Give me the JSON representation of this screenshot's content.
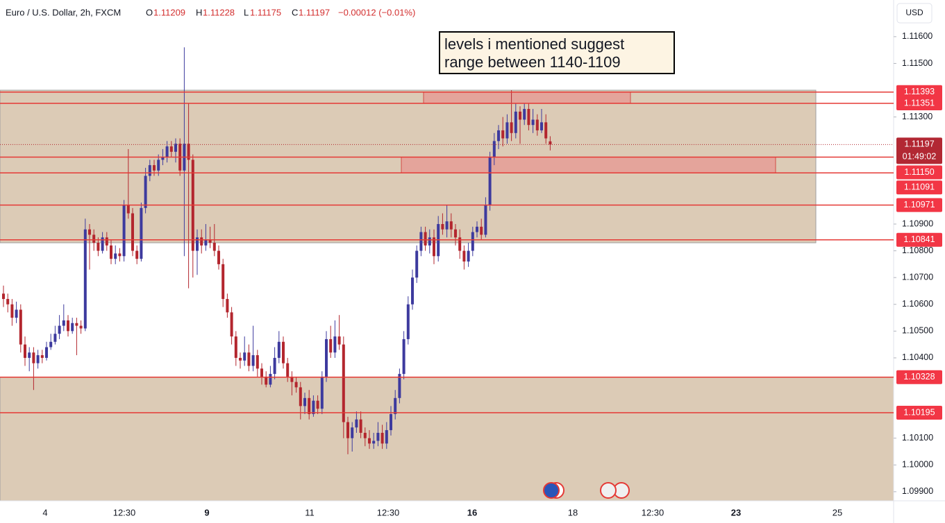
{
  "chart_data": {
    "type": "candlestick",
    "symbol": "Euro / U.S. Dollar, 2h, FXCM",
    "ohlc_labels": [
      "O",
      "H",
      "L",
      "C"
    ],
    "change": "−0.00012 (−0.01%)",
    "currency": "USD",
    "countdown": "01:49:02",
    "annotation": [
      "levels i mentioned suggest",
      "range between 1140-1109"
    ],
    "up_color": "#3d3a9e",
    "down_color": "#b3262e",
    "level_color": "#e53935",
    "ylim": [
      1.09866,
      1.11737
    ],
    "yticks": [
      {
        "value": 1.116,
        "label": "1.11600"
      },
      {
        "value": 1.115,
        "label": "1.11500"
      },
      {
        "value": 1.113,
        "label": "1.11300"
      },
      {
        "value": 1.109,
        "label": "1.10900"
      },
      {
        "value": 1.108,
        "label": "1.10800"
      },
      {
        "value": 1.107,
        "label": "1.10700"
      },
      {
        "value": 1.106,
        "label": "1.10600"
      },
      {
        "value": 1.105,
        "label": "1.10500"
      },
      {
        "value": 1.104,
        "label": "1.10400"
      },
      {
        "value": 1.101,
        "label": "1.10100"
      },
      {
        "value": 1.1,
        "label": "1.10000"
      },
      {
        "value": 1.099,
        "label": "1.09900"
      }
    ],
    "grid": false,
    "x_labels": [
      "4",
      "12:30",
      "9",
      "11",
      "12:30",
      "16",
      "18",
      "12:30",
      "23",
      "25"
    ],
    "levels": [
      {
        "value": 1.11393,
        "label": "1.11393"
      },
      {
        "value": 1.11351,
        "label": "1.11351"
      },
      {
        "value": 1.1115,
        "label": "1.11150"
      },
      {
        "value": 1.11091,
        "label": "1.11091"
      },
      {
        "value": 1.10971,
        "label": "1.10971"
      },
      {
        "value": 1.10841,
        "label": "1.10841"
      },
      {
        "value": 1.10328,
        "label": "1.10328"
      },
      {
        "value": 1.10195,
        "label": "1.10195"
      }
    ],
    "zones": [
      {
        "top": 1.114,
        "bottom": 1.1083,
        "color": "#dccbb6"
      },
      {
        "top": 1.10328,
        "bottom": 1.09866,
        "color": "#dccbb6"
      },
      {
        "top": 1.11393,
        "bottom": 1.11351,
        "color": "#e4a098"
      },
      {
        "top": 1.1115,
        "bottom": 1.11091,
        "color": "#e4a098"
      }
    ],
    "open": [
      1.1064,
      1.1062,
      1.106,
      1.1055,
      1.1058,
      1.1045,
      1.104,
      1.1042,
      1.1038,
      1.1041,
      1.104,
      1.1044,
      1.1046,
      1.1049,
      1.1052,
      1.1054,
      1.105,
      1.1053,
      1.1052,
      1.1051,
      1.1088,
      1.1086,
      1.1083,
      1.108,
      1.1085,
      1.1082,
      1.1077,
      1.1079,
      1.1078,
      1.1097,
      1.1094,
      1.108,
      1.1077,
      1.1096,
      1.1108,
      1.1112,
      1.111,
      1.1114,
      1.1115,
      1.1119,
      1.1117,
      1.112,
      1.111,
      1.112,
      1.1114,
      1.108,
      1.1085,
      1.1082,
      1.1084,
      1.1083,
      1.108,
      1.1075,
      1.1062,
      1.1057,
      1.1048,
      1.104,
      1.1039,
      1.1042,
      1.1037,
      1.1041,
      1.1036,
      1.1033,
      1.103,
      1.1034,
      1.104,
      1.1046,
      1.1038,
      1.1033,
      1.1031,
      1.1029,
      1.1022,
      1.1025,
      1.1019,
      1.1024,
      1.1021,
      1.1033,
      1.1047,
      1.1042,
      1.1048,
      1.1045,
      1.1016,
      1.101,
      1.1014,
      1.1017,
      1.1012,
      1.101,
      1.1008,
      1.1009,
      1.1012,
      1.1008,
      1.1013,
      1.1019,
      1.1025,
      1.1034,
      1.1047,
      1.106,
      1.107,
      1.108,
      1.1087,
      1.1082,
      1.1085,
      1.1078,
      1.109,
      1.1088,
      1.1091,
      1.1088,
      1.1085,
      1.108,
      1.1076,
      1.108,
      1.1087,
      1.1089,
      1.1086,
      1.1097,
      1.1115,
      1.1121,
      1.1125,
      1.1122,
      1.1128,
      1.1124,
      1.1132,
      1.1129,
      1.1133,
      1.1127,
      1.1129,
      1.1125,
      1.1128,
      1.11209
    ],
    "high": [
      1.1067,
      1.1064,
      1.1062,
      1.1061,
      1.106,
      1.1048,
      1.1044,
      1.1044,
      1.1043,
      1.1043,
      1.1046,
      1.1049,
      1.1052,
      1.1056,
      1.106,
      1.1056,
      1.1055,
      1.1055,
      1.1054,
      1.1092,
      1.109,
      1.1088,
      1.1085,
      1.1087,
      1.1087,
      1.1084,
      1.1082,
      1.1081,
      1.1099,
      1.1118,
      1.1096,
      1.1082,
      1.1098,
      1.1111,
      1.1114,
      1.1114,
      1.1116,
      1.1118,
      1.1121,
      1.1121,
      1.1122,
      1.1122,
      1.1156,
      1.1135,
      1.1116,
      1.1088,
      1.1088,
      1.109,
      1.1089,
      1.109,
      1.1082,
      1.1077,
      1.1064,
      1.1059,
      1.105,
      1.1042,
      1.1048,
      1.1045,
      1.1052,
      1.1043,
      1.1038,
      1.1035,
      1.1037,
      1.1044,
      1.105,
      1.1048,
      1.104,
      1.1035,
      1.1033,
      1.1031,
      1.1027,
      1.1028,
      1.1026,
      1.1026,
      1.1035,
      1.105,
      1.1052,
      1.1054,
      1.1056,
      1.1048,
      1.1018,
      1.1016,
      1.102,
      1.102,
      1.1014,
      1.1013,
      1.1012,
      1.1016,
      1.1015,
      1.1016,
      1.1022,
      1.1028,
      1.1036,
      1.105,
      1.1063,
      1.1073,
      1.1082,
      1.1089,
      1.1089,
      1.1088,
      1.1088,
      1.1093,
      1.1094,
      1.1097,
      1.1094,
      1.109,
      1.1088,
      1.1082,
      1.1083,
      1.1089,
      1.1091,
      1.1092,
      1.11,
      1.1117,
      1.1124,
      1.1127,
      1.113,
      1.1131,
      1.114,
      1.1135,
      1.1134,
      1.1135,
      1.1135,
      1.1133,
      1.1131,
      1.1133,
      1.1131,
      1.11228
    ],
    "low": [
      1.1059,
      1.1057,
      1.1052,
      1.1053,
      1.1042,
      1.1037,
      1.1035,
      1.1028,
      1.1036,
      1.1038,
      1.1039,
      1.1043,
      1.1045,
      1.1047,
      1.105,
      1.1048,
      1.1049,
      1.1041,
      1.1049,
      1.105,
      1.1073,
      1.108,
      1.1078,
      1.1079,
      1.108,
      1.1075,
      1.1075,
      1.1076,
      1.1076,
      1.1092,
      1.1078,
      1.1075,
      1.1076,
      1.1094,
      1.1106,
      1.1108,
      1.1108,
      1.1112,
      1.1113,
      1.1115,
      1.1113,
      1.1108,
      1.1078,
      1.1066,
      1.107,
      1.1071,
      1.1079,
      1.108,
      1.1081,
      1.1078,
      1.1073,
      1.1059,
      1.1055,
      1.1045,
      1.1037,
      1.1036,
      1.1037,
      1.1035,
      1.1035,
      1.1033,
      1.103,
      1.1029,
      1.1029,
      1.1032,
      1.1038,
      1.1036,
      1.1031,
      1.1026,
      1.1027,
      1.1017,
      1.1019,
      1.1017,
      1.1018,
      1.1019,
      1.1019,
      1.1031,
      1.104,
      1.104,
      1.1043,
      1.101,
      1.1004,
      1.1005,
      1.1012,
      1.101,
      1.1007,
      1.1006,
      1.1006,
      1.1007,
      1.1006,
      1.1006,
      1.1011,
      1.1017,
      1.1023,
      1.1032,
      1.1045,
      1.1058,
      1.1068,
      1.1078,
      1.108,
      1.1079,
      1.1075,
      1.1076,
      1.1086,
      1.1085,
      1.1085,
      1.1082,
      1.1077,
      1.1073,
      1.1074,
      1.1078,
      1.1085,
      1.1084,
      1.1085,
      1.1095,
      1.1112,
      1.1118,
      1.1119,
      1.112,
      1.1121,
      1.1122,
      1.112,
      1.1127,
      1.1125,
      1.1124,
      1.1123,
      1.1124,
      1.112,
      1.11175
    ],
    "close": [
      1.1062,
      1.106,
      1.1055,
      1.1058,
      1.1045,
      1.104,
      1.1042,
      1.1038,
      1.1041,
      1.104,
      1.1044,
      1.1046,
      1.1049,
      1.1052,
      1.1054,
      1.105,
      1.1053,
      1.1052,
      1.1051,
      1.1088,
      1.1086,
      1.1083,
      1.108,
      1.1085,
      1.1082,
      1.1077,
      1.1079,
      1.1078,
      1.1097,
      1.1094,
      1.108,
      1.1077,
      1.1096,
      1.1108,
      1.1112,
      1.111,
      1.1114,
      1.1115,
      1.1119,
      1.1117,
      1.112,
      1.111,
      1.112,
      1.1114,
      1.108,
      1.1085,
      1.1082,
      1.1084,
      1.1083,
      1.108,
      1.1075,
      1.1062,
      1.1057,
      1.1048,
      1.104,
      1.1039,
      1.1042,
      1.1037,
      1.1041,
      1.1036,
      1.1033,
      1.103,
      1.1034,
      1.104,
      1.1046,
      1.1038,
      1.1033,
      1.1031,
      1.1029,
      1.1022,
      1.1025,
      1.1019,
      1.1024,
      1.1021,
      1.1033,
      1.1047,
      1.1042,
      1.1048,
      1.1045,
      1.1016,
      1.101,
      1.1014,
      1.1017,
      1.1012,
      1.101,
      1.1008,
      1.1009,
      1.1012,
      1.1008,
      1.1013,
      1.1019,
      1.1025,
      1.1034,
      1.1047,
      1.106,
      1.107,
      1.108,
      1.1087,
      1.1082,
      1.1085,
      1.1078,
      1.109,
      1.1088,
      1.1091,
      1.1088,
      1.1085,
      1.108,
      1.1076,
      1.108,
      1.1087,
      1.1089,
      1.1086,
      1.1097,
      1.1115,
      1.1121,
      1.1125,
      1.1122,
      1.1128,
      1.1124,
      1.1132,
      1.1129,
      1.1133,
      1.1127,
      1.1129,
      1.1125,
      1.1128,
      1.1122,
      1.11197
    ]
  }
}
